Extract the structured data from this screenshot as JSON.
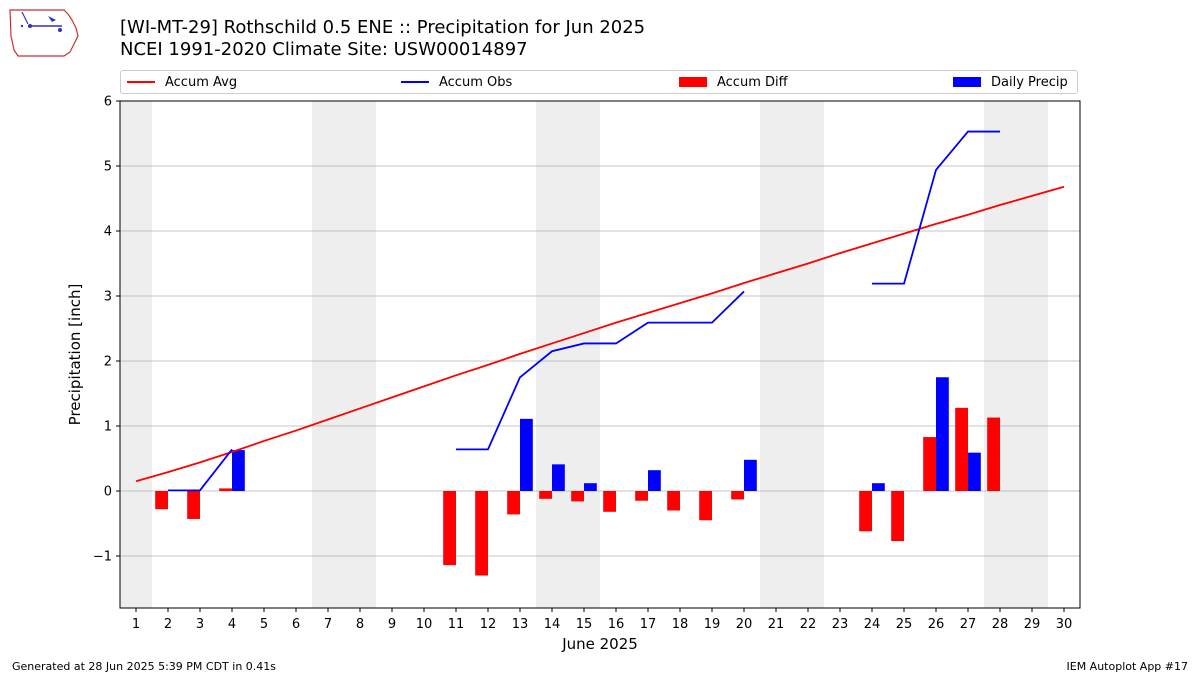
{
  "header": {
    "logo_text": "IEM",
    "title": "[WI-MT-29] Rothschild 0.5 ENE :: Precipitation for Jun 2025",
    "subtitle": "NCEI 1991-2020 Climate Site: USW00014897"
  },
  "legend": {
    "items": [
      {
        "label": "Accum Avg",
        "kind": "line",
        "color": "#ff0000"
      },
      {
        "label": "Accum Obs",
        "kind": "line",
        "color": "#0000ff"
      },
      {
        "label": "Accum Diff",
        "kind": "patch",
        "color": "#ff0000"
      },
      {
        "label": "Daily Precip",
        "kind": "patch",
        "color": "#0000ff"
      }
    ]
  },
  "footer": {
    "left": "Generated at 28 Jun 2025 5:39 PM CDT in 0.41s",
    "right": "IEM Autoplot App #17"
  },
  "chart_data": {
    "type": "bar",
    "xlabel": "June 2025",
    "ylabel": "Precipitation [inch]",
    "xlim": [
      0.5,
      30.5
    ],
    "ylim": [
      -1.8,
      6
    ],
    "yticks": [
      -1,
      0,
      1,
      2,
      3,
      4,
      5,
      6
    ],
    "ytick_labels": [
      "−1",
      "0",
      "1",
      "2",
      "3",
      "4",
      "5",
      "6"
    ],
    "xticks": [
      1,
      2,
      3,
      4,
      5,
      6,
      7,
      8,
      9,
      10,
      11,
      12,
      13,
      14,
      15,
      16,
      17,
      18,
      19,
      20,
      21,
      22,
      23,
      24,
      25,
      26,
      27,
      28,
      29,
      30
    ],
    "grid": "horizontal",
    "weekend_shading": [
      [
        0.5,
        1.5
      ],
      [
        6.5,
        8.5
      ],
      [
        13.5,
        15.5
      ],
      [
        20.5,
        22.5
      ],
      [
        27.5,
        29.5
      ]
    ],
    "colors": {
      "avg": "#ff0000",
      "obs": "#0000ff",
      "diff": "#ff0000",
      "daily": "#0000ff",
      "shade": "#eeeeee",
      "grid": "#b0b0b0"
    },
    "series": [
      {
        "name": "Accum Avg",
        "kind": "line",
        "x": [
          1,
          2,
          3,
          4,
          5,
          6,
          7,
          8,
          9,
          10,
          11,
          12,
          13,
          14,
          15,
          16,
          17,
          18,
          19,
          20,
          21,
          22,
          23,
          24,
          25,
          26,
          27,
          28,
          29,
          30
        ],
        "values": [
          0.15,
          0.29,
          0.44,
          0.6,
          0.77,
          0.93,
          1.1,
          1.27,
          1.44,
          1.61,
          1.78,
          1.94,
          2.11,
          2.27,
          2.43,
          2.59,
          2.74,
          2.89,
          3.04,
          3.2,
          3.35,
          3.5,
          3.66,
          3.81,
          3.96,
          4.11,
          4.25,
          4.4,
          4.54,
          4.68
        ]
      },
      {
        "name": "Accum Obs",
        "kind": "line",
        "segments": [
          {
            "x": [
              2,
              3,
              4
            ],
            "values": [
              0.01,
              0.01,
              0.64
            ]
          },
          {
            "x": [
              11,
              12,
              13,
              14,
              15,
              16,
              17,
              18,
              19,
              20
            ],
            "values": [
              0.64,
              0.64,
              1.75,
              2.15,
              2.27,
              2.27,
              2.59,
              2.59,
              2.59,
              3.07
            ]
          },
          {
            "x": [
              24,
              25,
              26,
              27,
              28
            ],
            "values": [
              3.19,
              3.19,
              4.94,
              5.53,
              5.53
            ]
          }
        ]
      },
      {
        "name": "Accum Diff",
        "kind": "bar",
        "x": [
          2,
          3,
          4,
          11,
          12,
          13,
          14,
          15,
          16,
          17,
          18,
          19,
          20,
          24,
          25,
          26,
          27,
          28
        ],
        "values": [
          -0.28,
          -0.43,
          0.04,
          -1.14,
          -1.3,
          -0.36,
          -0.12,
          -0.16,
          -0.32,
          -0.15,
          -0.3,
          -0.45,
          -0.13,
          -0.62,
          -0.77,
          0.83,
          1.28,
          1.13
        ]
      },
      {
        "name": "Daily Precip",
        "kind": "bar",
        "x": [
          4,
          13,
          14,
          15,
          17,
          20,
          24,
          26,
          27
        ],
        "values": [
          0.63,
          1.11,
          0.41,
          0.12,
          0.32,
          0.48,
          0.12,
          1.75,
          0.59
        ]
      }
    ]
  }
}
